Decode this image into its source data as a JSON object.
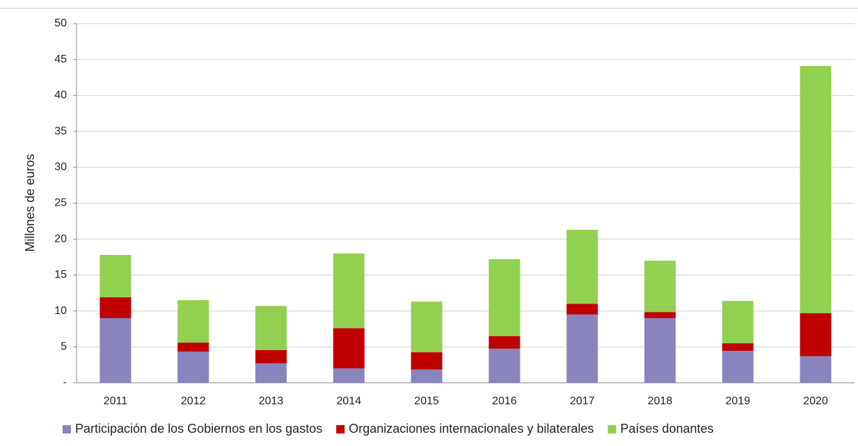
{
  "chart_data": {
    "type": "stacked_bar",
    "y_label": "Millones de euros",
    "categories": [
      "2011",
      "2012",
      "2013",
      "2014",
      "2015",
      "2016",
      "2017",
      "2018",
      "2019",
      "2020"
    ],
    "series": [
      {
        "name": "Participación de los Gobiernos en los gastos",
        "color": "#8a84be",
        "values": [
          9.0,
          4.35,
          2.7,
          2.0,
          1.85,
          4.75,
          9.5,
          9.0,
          4.45,
          3.7
        ]
      },
      {
        "name": "Organizaciones internacionales y bilaterales",
        "color": "#c00000",
        "values": [
          2.9,
          1.25,
          1.85,
          5.6,
          2.4,
          1.75,
          1.5,
          0.85,
          1.05,
          6.0
        ]
      },
      {
        "name": "Países donantes",
        "color": "#92d050",
        "values": [
          5.9,
          5.9,
          6.15,
          10.4,
          7.05,
          10.7,
          10.3,
          7.15,
          5.9,
          34.4
        ]
      }
    ],
    "ylim": [
      0,
      50
    ],
    "yticks": [
      {
        "value": 0,
        "label": "-"
      },
      5,
      10,
      15,
      20,
      25,
      30,
      35,
      40,
      45,
      50
    ],
    "grid": true,
    "legend": "bottom"
  }
}
